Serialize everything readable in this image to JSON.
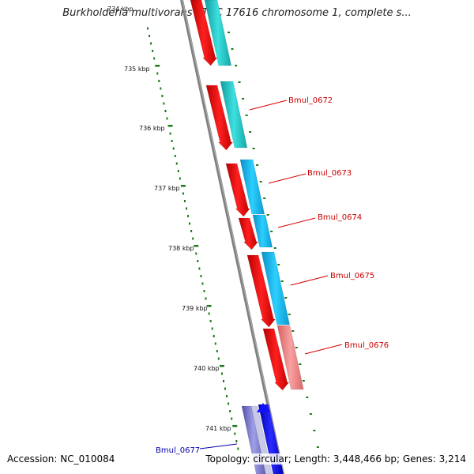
{
  "title": "Burkholderia multivorans ATCC 17616 chromosome 1, complete s...",
  "accession": "Accession: NC_010084",
  "topology": "Topology: circular; Length: 3,448,466 bp; Genes: 3,214",
  "ruler_labels": [
    "734 kbp",
    "735 kbp",
    "736 kbp",
    "737 kbp",
    "738 kbp",
    "739 kbp",
    "740 kbp",
    "741 kbp"
  ],
  "genes": [
    {
      "name": "Bmul_0672",
      "color": "#cc0000"
    },
    {
      "name": "Bmul_0673",
      "color": "#cc0000"
    },
    {
      "name": "Bmul_0674",
      "color": "#cc0000"
    },
    {
      "name": "Bmul_0675",
      "color": "#cc0000"
    },
    {
      "name": "Bmul_0676",
      "color": "#cc0000"
    },
    {
      "name": "Bmul_0677",
      "color": "#0000aa"
    }
  ],
  "colors": {
    "backbone": "#808080",
    "gene_red": "#ff0000",
    "cyan": "#22cccc",
    "sky": "#11bbee",
    "salmon": "#f08080",
    "blue": "#0000ee",
    "purple": "#7777cc",
    "tick_green": "#1a7a1a"
  }
}
